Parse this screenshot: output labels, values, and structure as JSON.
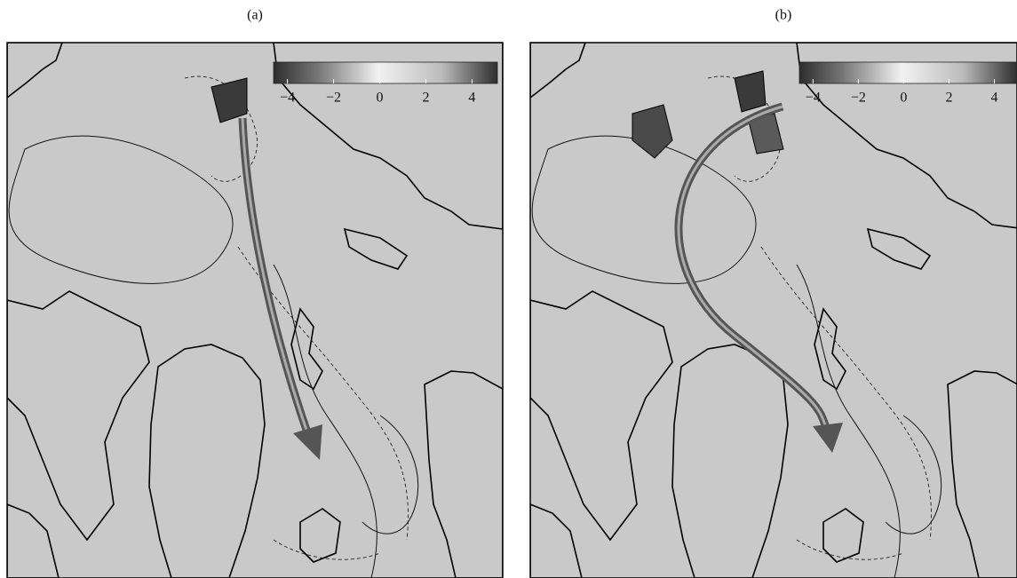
{
  "panels": [
    {
      "label": "(a)",
      "colorbar": {
        "lim": [
          -4.6,
          5.1
        ],
        "ticks": [
          {
            "value": -4,
            "label": "−4"
          },
          {
            "value": -2,
            "label": "−2"
          },
          0,
          2,
          4
        ]
      }
    },
    {
      "label": "(b)",
      "colorbar": {
        "lim": [
          -4.6,
          5.0
        ],
        "ticks": [
          {
            "value": -4,
            "label": "−4"
          },
          {
            "value": -2,
            "label": "−2"
          },
          0,
          2,
          4
        ]
      }
    }
  ]
}
